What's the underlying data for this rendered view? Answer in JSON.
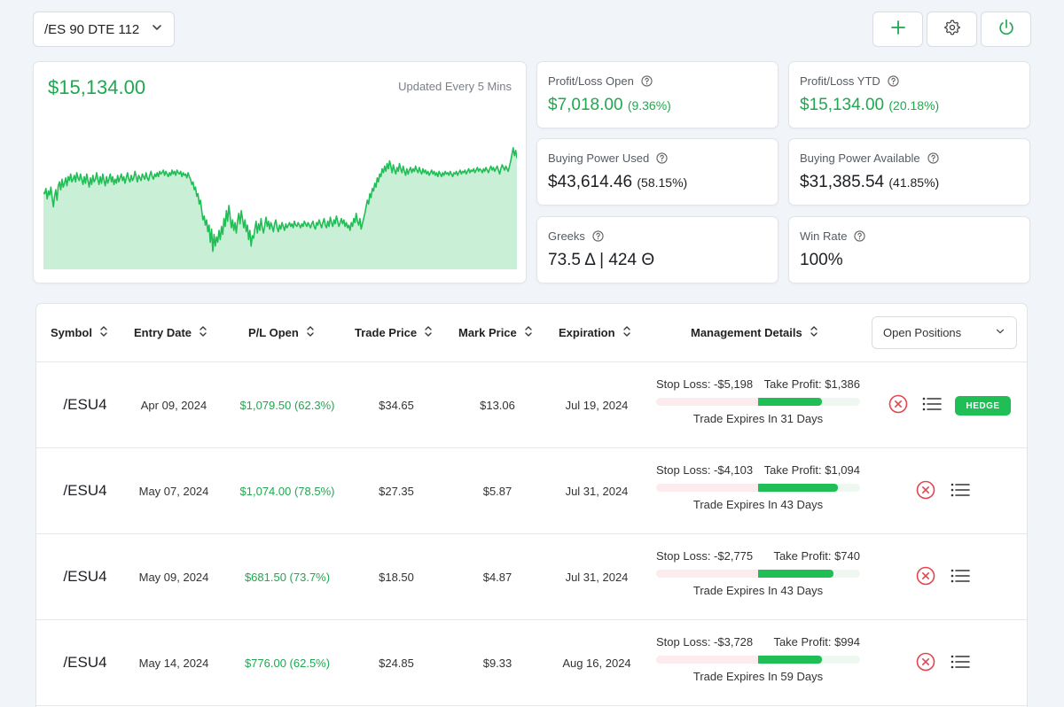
{
  "selector": {
    "value": "/ES 90 DTE 112"
  },
  "chart_card": {
    "value": "$15,134.00",
    "updated": "Updated Every 5 Mins"
  },
  "stats": [
    {
      "label": "Profit/Loss Open",
      "value": "$7,018.00",
      "pct": "(9.36%)",
      "green": true
    },
    {
      "label": "Profit/Loss YTD",
      "value": "$15,134.00",
      "pct": "(20.18%)",
      "green": true
    },
    {
      "label": "Buying Power Used",
      "value": "$43,614.46",
      "pct": "(58.15%)",
      "green": false
    },
    {
      "label": "Buying Power Available",
      "value": "$31,385.54",
      "pct": "(41.85%)",
      "green": false
    },
    {
      "label": "Greeks",
      "value": "73.5 Δ | 424 Θ",
      "pct": "",
      "green": false
    },
    {
      "label": "Win Rate",
      "value": "100%",
      "pct": "",
      "green": false
    }
  ],
  "table": {
    "headers": [
      "Symbol",
      "Entry Date",
      "P/L Open",
      "Trade Price",
      "Mark Price",
      "Expiration",
      "Management Details"
    ],
    "filter": "Open Positions",
    "hedge_label": "HEDGE",
    "rows": [
      {
        "symbol": "/ESU4",
        "entry": "Apr 09, 2024",
        "pl": "$1,079.50 (62.3%)",
        "trade": "$34.65",
        "mark": "$13.06",
        "exp": "Jul 19, 2024",
        "sl": "Stop Loss: -$5,198",
        "tp": "Take Profit: $1,386",
        "expires": "Trade Expires In 31 Days",
        "progress": 0.623,
        "hedge": true
      },
      {
        "symbol": "/ESU4",
        "entry": "May 07, 2024",
        "pl": "$1,074.00 (78.5%)",
        "trade": "$27.35",
        "mark": "$5.87",
        "exp": "Jul 31, 2024",
        "sl": "Stop Loss: -$4,103",
        "tp": "Take Profit: $1,094",
        "expires": "Trade Expires In 43 Days",
        "progress": 0.785,
        "hedge": false
      },
      {
        "symbol": "/ESU4",
        "entry": "May 09, 2024",
        "pl": "$681.50 (73.7%)",
        "trade": "$18.50",
        "mark": "$4.87",
        "exp": "Jul 31, 2024",
        "sl": "Stop Loss: -$2,775",
        "tp": "Take Profit: $740",
        "expires": "Trade Expires In 43 Days",
        "progress": 0.737,
        "hedge": false
      },
      {
        "symbol": "/ESU4",
        "entry": "May 14, 2024",
        "pl": "$776.00 (62.5%)",
        "trade": "$24.85",
        "mark": "$9.33",
        "exp": "Aug 16, 2024",
        "sl": "Stop Loss: -$3,728",
        "tp": "Take Profit: $994",
        "expires": "Trade Expires In 59 Days",
        "progress": 0.625,
        "hedge": false
      }
    ]
  },
  "chart_data": {
    "type": "area",
    "values": [
      0.56,
      0.55,
      0.59,
      0.51,
      0.57,
      0.54,
      0.6,
      0.52,
      0.45,
      0.53,
      0.58,
      0.5,
      0.61,
      0.64,
      0.58,
      0.66,
      0.6,
      0.63,
      0.67,
      0.61,
      0.68,
      0.65,
      0.7,
      0.64,
      0.66,
      0.69,
      0.64,
      0.71,
      0.67,
      0.65,
      0.7,
      0.66,
      0.62,
      0.68,
      0.63,
      0.7,
      0.65,
      0.6,
      0.67,
      0.62,
      0.69,
      0.64,
      0.66,
      0.71,
      0.66,
      0.62,
      0.68,
      0.63,
      0.7,
      0.65,
      0.61,
      0.68,
      0.63,
      0.66,
      0.7,
      0.64,
      0.68,
      0.62,
      0.66,
      0.63,
      0.69,
      0.64,
      0.67,
      0.7,
      0.65,
      0.68,
      0.63,
      0.67,
      0.71,
      0.66,
      0.64,
      0.69,
      0.65,
      0.67,
      0.72,
      0.68,
      0.64,
      0.69,
      0.67,
      0.65,
      0.7,
      0.68,
      0.66,
      0.71,
      0.67,
      0.65,
      0.69,
      0.72,
      0.68,
      0.66,
      0.7,
      0.68,
      0.71,
      0.68,
      0.72,
      0.7,
      0.71,
      0.73,
      0.69,
      0.72,
      0.7,
      0.68,
      0.71,
      0.69,
      0.73,
      0.7,
      0.72,
      0.69,
      0.73,
      0.71,
      0.7,
      0.72,
      0.68,
      0.71,
      0.69,
      0.7,
      0.67,
      0.71,
      0.68,
      0.66,
      0.62,
      0.64,
      0.58,
      0.6,
      0.53,
      0.55,
      0.47,
      0.5,
      0.42,
      0.35,
      0.38,
      0.31,
      0.35,
      0.26,
      0.31,
      0.18,
      0.28,
      0.11,
      0.24,
      0.15,
      0.22,
      0.18,
      0.27,
      0.2,
      0.3,
      0.24,
      0.36,
      0.3,
      0.42,
      0.34,
      0.46,
      0.38,
      0.29,
      0.35,
      0.27,
      0.33,
      0.25,
      0.34,
      0.4,
      0.32,
      0.42,
      0.36,
      0.29,
      0.35,
      0.26,
      0.31,
      0.2,
      0.27,
      0.15,
      0.23,
      0.21,
      0.28,
      0.34,
      0.25,
      0.32,
      0.27,
      0.36,
      0.29,
      0.25,
      0.31,
      0.37,
      0.3,
      0.34,
      0.28,
      0.33,
      0.3,
      0.26,
      0.32,
      0.35,
      0.29,
      0.26,
      0.31,
      0.28,
      0.33,
      0.3,
      0.27,
      0.32,
      0.29,
      0.31,
      0.33,
      0.3,
      0.32,
      0.29,
      0.34,
      0.31,
      0.3,
      0.33,
      0.31,
      0.29,
      0.32,
      0.3,
      0.34,
      0.32,
      0.3,
      0.33,
      0.31,
      0.29,
      0.32,
      0.34,
      0.3,
      0.28,
      0.33,
      0.31,
      0.35,
      0.32,
      0.29,
      0.33,
      0.36,
      0.31,
      0.29,
      0.34,
      0.3,
      0.37,
      0.33,
      0.3,
      0.35,
      0.32,
      0.38,
      0.34,
      0.3,
      0.33,
      0.36,
      0.32,
      0.35,
      0.3,
      0.33,
      0.29,
      0.31,
      0.27,
      0.33,
      0.3,
      0.36,
      0.33,
      0.4,
      0.34,
      0.31,
      0.36,
      0.28,
      0.32,
      0.36,
      0.4,
      0.45,
      0.5,
      0.47,
      0.55,
      0.52,
      0.59,
      0.57,
      0.63,
      0.6,
      0.67,
      0.64,
      0.7,
      0.68,
      0.74,
      0.71,
      0.76,
      0.72,
      0.78,
      0.74,
      0.8,
      0.76,
      0.71,
      0.77,
      0.73,
      0.7,
      0.75,
      0.72,
      0.78,
      0.74,
      0.71,
      0.76,
      0.72,
      0.69,
      0.74,
      0.7,
      0.73,
      0.75,
      0.71,
      0.74,
      0.72,
      0.76,
      0.73,
      0.71,
      0.75,
      0.72,
      0.7,
      0.74,
      0.71,
      0.73,
      0.7,
      0.72,
      0.69,
      0.71,
      0.73,
      0.7,
      0.72,
      0.69,
      0.71,
      0.68,
      0.72,
      0.7,
      0.68,
      0.71,
      0.69,
      0.72,
      0.7,
      0.71,
      0.69,
      0.72,
      0.7,
      0.68,
      0.71,
      0.7,
      0.72,
      0.69,
      0.71,
      0.73,
      0.7,
      0.72,
      0.71,
      0.73,
      0.7,
      0.72,
      0.74,
      0.71,
      0.73,
      0.72,
      0.74,
      0.71,
      0.73,
      0.75,
      0.72,
      0.74,
      0.73,
      0.71,
      0.74,
      0.72,
      0.75,
      0.73,
      0.71,
      0.74,
      0.76,
      0.73,
      0.75,
      0.72,
      0.74,
      0.76,
      0.73,
      0.7,
      0.74,
      0.77,
      0.75,
      0.73,
      0.76,
      0.74,
      0.72,
      0.76,
      0.8,
      0.85,
      0.9,
      0.84,
      0.88,
      0.82
    ],
    "color": "#1fbf55",
    "fill": "#c9efd6"
  }
}
